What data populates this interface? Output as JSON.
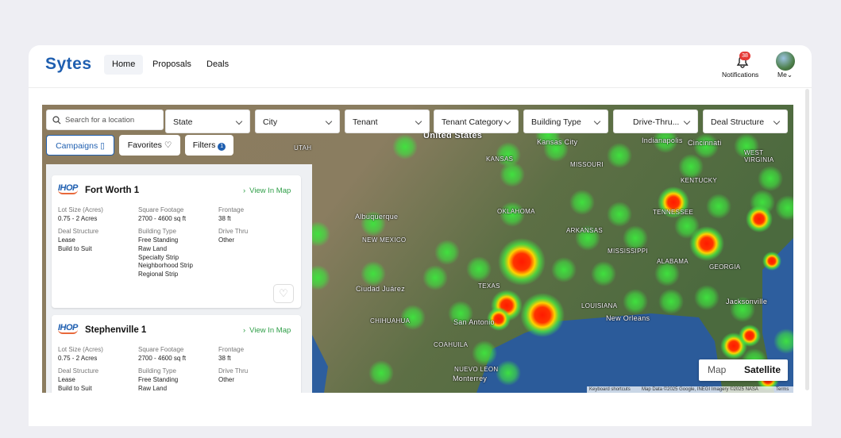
{
  "header": {
    "logo": "Sytes",
    "nav": [
      "Home",
      "Proposals",
      "Deals"
    ],
    "notifications": {
      "label": "Notifications",
      "count": 38
    },
    "user": "Me"
  },
  "search": {
    "placeholder": "Search for a location"
  },
  "filters": [
    "State",
    "City",
    "Tenant",
    "Tenant Category",
    "Building Type",
    "Drive-Thru...",
    "Deal Structure"
  ],
  "buttons": {
    "campaigns": "Campaigns",
    "favorites": "Favorites",
    "filters": {
      "label": "Filters",
      "count": 1
    }
  },
  "listings": [
    {
      "brand": "IHOP",
      "name": "Fort Worth 1",
      "link": "View In Map",
      "fields": [
        {
          "label": "Lot Size (Acres)",
          "values": [
            "0.75 - 2 Acres"
          ]
        },
        {
          "label": "Square Footage",
          "values": [
            "2700 - 4600 sq ft"
          ]
        },
        {
          "label": "Frontage",
          "values": [
            "38 ft"
          ]
        },
        {
          "label": "Deal Structure",
          "values": [
            "Lease",
            "Build to Suit"
          ]
        },
        {
          "label": "Building Type",
          "values": [
            "Free Standing",
            "Raw Land",
            "Specialty Strip",
            "Neighborhood Strip",
            "Regional Strip"
          ]
        },
        {
          "label": "Drive Thru",
          "values": [
            "Other"
          ]
        }
      ]
    },
    {
      "brand": "IHOP",
      "name": "Stephenville 1",
      "link": "View In Map",
      "fields": [
        {
          "label": "Lot Size (Acres)",
          "values": [
            "0.75 - 2 Acres"
          ]
        },
        {
          "label": "Square Footage",
          "values": [
            "2700 - 4600 sq ft"
          ]
        },
        {
          "label": "Frontage",
          "values": [
            "38 ft"
          ]
        },
        {
          "label": "Deal Structure",
          "values": [
            "Lease",
            "Build to Suit"
          ]
        },
        {
          "label": "Building Type",
          "values": [
            "Free Standing",
            "Raw Land"
          ]
        },
        {
          "label": "Drive Thru",
          "values": [
            "Other"
          ]
        }
      ]
    }
  ],
  "map": {
    "labels": [
      "United States",
      "UTAH",
      "Kansas City",
      "KANSAS",
      "MISSOURI",
      "Indianapolis",
      "Cincinnati",
      "WEST",
      "VIRGINIA",
      "KENTUCKY",
      "Albuquerque",
      "NEW MEXICO",
      "OKLAHOMA",
      "ARKANSAS",
      "TENNESSEE",
      "MISSISSIPPI",
      "ALABAMA",
      "GEORGIA",
      "TEXAS",
      "Ciudad Juárez",
      "CHIHUAHUA",
      "San Antonio",
      "LOUISIANA",
      "New Orleans",
      "Jacksonville",
      "COAHUILA",
      "NUEVO LEON",
      "Monterrey"
    ],
    "toggle": [
      "Map",
      "Satellite"
    ],
    "attribution": [
      "Keyboard shortcuts",
      "Map Data ©2025 Google, INEGI Imagery ©2025 NASA",
      "Terms"
    ]
  }
}
